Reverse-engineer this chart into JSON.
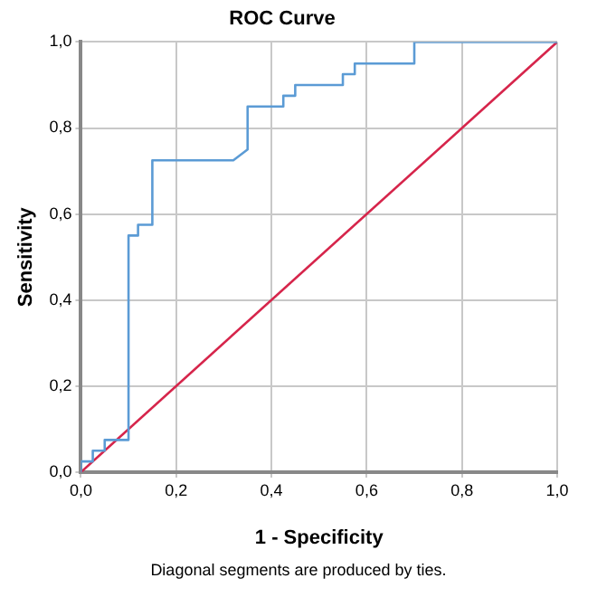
{
  "chart_data": {
    "type": "line",
    "title": "ROC Curve",
    "xlabel": "1 - Specificity",
    "ylabel": "Sensitivity",
    "annotations": [
      "Diagonal segments are produced by ties."
    ],
    "series": [
      {
        "color": "#5b9bd5",
        "x": [
          0,
          0,
          0.025,
          0.025,
          0.05,
          0.05,
          0.1,
          0.1,
          0.12,
          0.12,
          0.15,
          0.15,
          0.32,
          0.35,
          0.35,
          0.425,
          0.425,
          0.45,
          0.45,
          0.55,
          0.55,
          0.575,
          0.575,
          0.7,
          0.7,
          1
        ],
        "values": [
          0,
          0.025,
          0.025,
          0.05,
          0.05,
          0.075,
          0.075,
          0.55,
          0.55,
          0.575,
          0.575,
          0.725,
          0.725,
          0.75,
          0.85,
          0.85,
          0.875,
          0.875,
          0.9,
          0.9,
          0.925,
          0.925,
          0.95,
          0.95,
          1,
          1
        ]
      },
      {
        "color": "#d6254b",
        "x": [
          0,
          1
        ],
        "values": [
          0,
          1
        ]
      }
    ],
    "xlim": [
      0,
      1
    ],
    "ylim": [
      0,
      1
    ],
    "xticks": [
      {
        "value": 0,
        "label": "0,0"
      },
      {
        "value": 0.2,
        "label": "0,2"
      },
      {
        "value": 0.4,
        "label": "0,4"
      },
      {
        "value": 0.6,
        "label": "0,6"
      },
      {
        "value": 0.8,
        "label": "0,8"
      },
      {
        "value": 1,
        "label": "1,0"
      }
    ],
    "yticks": [
      {
        "value": 0,
        "label": "0,0"
      },
      {
        "value": 0.2,
        "label": "0,2"
      },
      {
        "value": 0.4,
        "label": "0,4"
      },
      {
        "value": 0.6,
        "label": "0,6"
      },
      {
        "value": 0.8,
        "label": "0,8"
      },
      {
        "value": 1,
        "label": "1,0"
      }
    ],
    "grid": true,
    "legend": false,
    "marker": "none",
    "line_style": "solid"
  }
}
